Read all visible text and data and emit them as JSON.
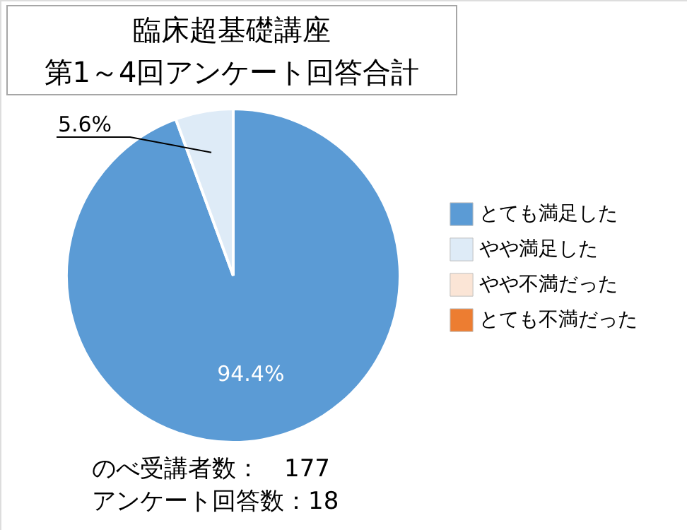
{
  "chart_data": {
    "type": "pie",
    "title": "臨床超基礎講座",
    "subtitle": "第1～4回アンケート回答合計",
    "categories": [
      "とても満足した",
      "やや満足した",
      "やや不満だった",
      "とても不満だった"
    ],
    "values": [
      94.4,
      5.6,
      0,
      0
    ],
    "colors": [
      "#5b9bd5",
      "#deebf7",
      "#fbe5d6",
      "#ed7d31"
    ],
    "value_labels": [
      "94.4%",
      "5.6%",
      null,
      null
    ],
    "legend": "right",
    "annotations": [
      "のべ受講者数：　177",
      "アンケート回答数：18"
    ]
  }
}
